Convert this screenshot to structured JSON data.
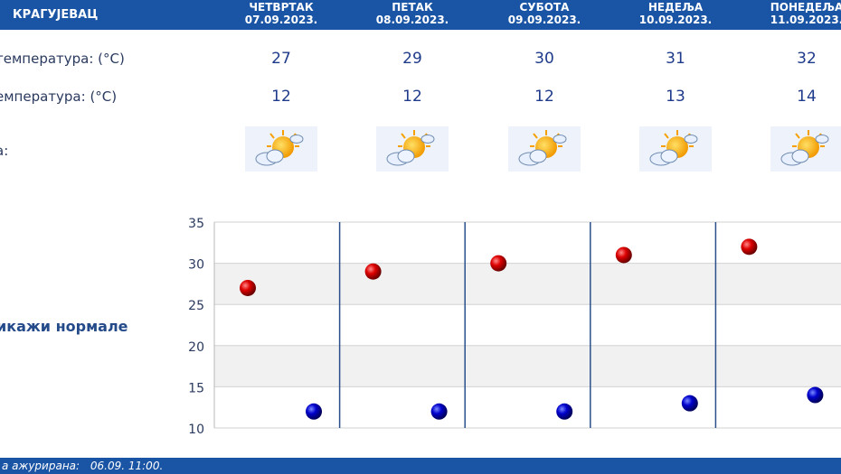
{
  "header": {
    "city": "КРАГУЈЕВАЦ"
  },
  "days": [
    {
      "name": "ЧЕТВРТАК",
      "date": "07.09.2023.",
      "max": "27",
      "min": "12",
      "icon": "partly-cloudy-icon"
    },
    {
      "name": "ПЕТАК",
      "date": "08.09.2023.",
      "max": "29",
      "min": "12",
      "icon": "partly-cloudy-icon"
    },
    {
      "name": "СУБОТА",
      "date": "09.09.2023.",
      "max": "30",
      "min": "12",
      "icon": "partly-cloudy-icon"
    },
    {
      "name": "НЕДЕЉА",
      "date": "10.09.2023.",
      "max": "31",
      "min": "13",
      "icon": "partly-cloudy-icon"
    },
    {
      "name": "ПОНЕДЕЉА",
      "date": "11.09.2023.",
      "max": "32",
      "min": "14",
      "icon": "partly-cloudy-icon"
    }
  ],
  "rows": {
    "max_label": "температура: (°C)",
    "min_label": "емпература: (°C)",
    "weather_label": "а:"
  },
  "normals_link": "икажи нормале",
  "footer": {
    "label": "а ажурирана:",
    "value": "06.09. 11:00."
  },
  "chart_data": {
    "type": "scatter",
    "categories": [
      "07.09.2023.",
      "08.09.2023.",
      "09.09.2023.",
      "10.09.2023.",
      "11.09.2023."
    ],
    "series": [
      {
        "values": [
          27,
          29,
          30,
          31,
          32
        ],
        "color": "#cc0000"
      },
      {
        "values": [
          12,
          12,
          12,
          13,
          14
        ],
        "color": "#0000bb"
      }
    ],
    "yticks": [
      "35",
      "30",
      "25",
      "20",
      "15",
      "10"
    ],
    "ylim": [
      10,
      35
    ],
    "grid": true
  },
  "colors": {
    "header": "#1a54a4",
    "max": "#cc0000",
    "min": "#0000bb"
  }
}
